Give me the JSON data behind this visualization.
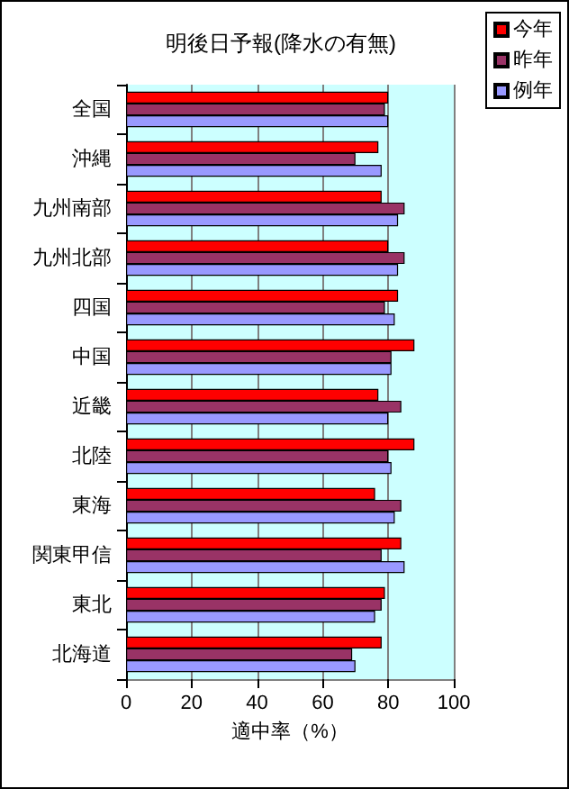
{
  "chart_data": {
    "type": "bar",
    "orientation": "horizontal",
    "title": "明後日予報(降水の有無)",
    "xlabel": "適中率（%）",
    "categories": [
      "全国",
      "沖縄",
      "九州南部",
      "九州北部",
      "四国",
      "中国",
      "近畿",
      "北陸",
      "東海",
      "関東甲信",
      "東北",
      "北海道"
    ],
    "series": [
      {
        "name": "今年",
        "color": "#ff0000",
        "values": [
          80,
          77,
          78,
          80,
          83,
          88,
          77,
          88,
          76,
          84,
          79,
          78
        ]
      },
      {
        "name": "昨年",
        "color": "#993366",
        "values": [
          79,
          70,
          85,
          85,
          79,
          81,
          84,
          80,
          84,
          78,
          78,
          69
        ]
      },
      {
        "name": "例年",
        "color": "#9999ff",
        "values": [
          80,
          78,
          83,
          83,
          82,
          81,
          80,
          81,
          82,
          85,
          76,
          70
        ]
      }
    ],
    "xlim": [
      0,
      100
    ],
    "xticks": [
      0,
      20,
      40,
      60,
      80,
      100
    ],
    "grid": "x",
    "legend": "top right"
  }
}
